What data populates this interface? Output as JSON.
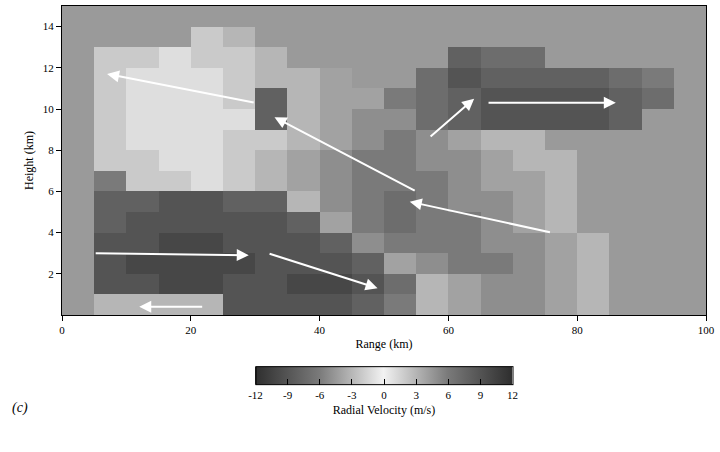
{
  "chart_data": {
    "type": "heatmap",
    "xlabel": "Range (km)",
    "ylabel": "Height (km)",
    "panel_label": "(c)",
    "xlim": [
      0,
      100
    ],
    "xticks": [
      0,
      20,
      40,
      60,
      80,
      100
    ],
    "ylim": [
      0,
      15
    ],
    "yticks": [
      2,
      4,
      6,
      8,
      10,
      12,
      14
    ],
    "x": [
      2.5,
      7.5,
      12.5,
      17.5,
      22.5,
      27.5,
      32.5,
      37.5,
      42.5,
      47.5,
      52.5,
      57.5,
      62.5,
      67.5,
      72.5,
      77.5,
      82.5,
      87.5,
      92.5,
      97.5
    ],
    "y": [
      0.5,
      1.5,
      2.5,
      3.5,
      4.5,
      5.5,
      6.5,
      7.5,
      8.5,
      9.5,
      10.5,
      11.5,
      12.5,
      13.5,
      14.5
    ],
    "z": [
      [
        null,
        -3,
        -3,
        -3,
        -3,
        9,
        9,
        9,
        9,
        8,
        6,
        -3,
        -4,
        -5,
        -5,
        -4,
        -3,
        null,
        null,
        null
      ],
      [
        null,
        9,
        9,
        10,
        10,
        9,
        9,
        10,
        10,
        9,
        7,
        -3,
        -4,
        -5,
        -5,
        -4,
        -3,
        null,
        null,
        null
      ],
      [
        null,
        9,
        10,
        10,
        10,
        10,
        9,
        9,
        9,
        8,
        -4,
        -5,
        -6,
        -6,
        -5,
        -4,
        -3,
        null,
        null,
        null
      ],
      [
        null,
        9,
        9,
        10,
        10,
        9,
        9,
        9,
        8,
        -5,
        -6,
        -6,
        -6,
        -5,
        -5,
        -4,
        -3,
        null,
        null,
        null
      ],
      [
        null,
        8,
        9,
        9,
        9,
        9,
        9,
        8,
        -4,
        -6,
        -7,
        -6,
        -6,
        -5,
        -4,
        -3,
        null,
        null,
        null,
        null
      ],
      [
        null,
        8,
        8,
        9,
        9,
        8,
        8,
        -3,
        -5,
        -6,
        -7,
        -6,
        -5,
        -5,
        -4,
        -3,
        null,
        null,
        null,
        null
      ],
      [
        null,
        6,
        -2,
        -2,
        -1,
        -2,
        -3,
        -4,
        -5,
        -6,
        -6,
        -6,
        -5,
        -4,
        -4,
        -3,
        null,
        null,
        null,
        null
      ],
      [
        null,
        -2,
        -2,
        -1,
        -1,
        -2,
        -3,
        -4,
        -5,
        -6,
        -6,
        -5,
        -5,
        -4,
        -3,
        -3,
        null,
        null,
        null,
        null
      ],
      [
        null,
        -2,
        -1,
        -1,
        -1,
        -2,
        -2,
        -3,
        -4,
        -5,
        -6,
        -5,
        -4,
        -3,
        -3,
        null,
        null,
        null,
        null,
        null
      ],
      [
        null,
        -2,
        -1,
        -1,
        -1,
        -1,
        -8,
        -3,
        -4,
        -5,
        -5,
        7,
        8,
        9,
        9,
        9,
        9,
        8,
        null,
        null
      ],
      [
        null,
        -2,
        -1,
        -1,
        -1,
        -2,
        -8,
        -3,
        -4,
        -4,
        6,
        7,
        8,
        9,
        9,
        9,
        9,
        8,
        7,
        null
      ],
      [
        null,
        -2,
        -1,
        -1,
        -1,
        -2,
        -3,
        -3,
        -4,
        null,
        null,
        7,
        9,
        8,
        8,
        8,
        8,
        7,
        6,
        null
      ],
      [
        null,
        -2,
        -2,
        -1,
        -2,
        -2,
        -3,
        null,
        null,
        null,
        null,
        null,
        8,
        7,
        7,
        null,
        null,
        null,
        null,
        null
      ],
      [
        null,
        null,
        null,
        null,
        -2,
        -3,
        null,
        null,
        null,
        null,
        null,
        null,
        null,
        null,
        null,
        null,
        null,
        null,
        null,
        null
      ],
      [
        null,
        null,
        null,
        null,
        null,
        null,
        null,
        null,
        null,
        null,
        null,
        null,
        null,
        null,
        null,
        null,
        null,
        null,
        null,
        null
      ]
    ],
    "colorbar": {
      "label": "Radial Velocity (m/s)",
      "range": [
        -12,
        12
      ],
      "ticks": [
        -12,
        -9,
        -6,
        -3,
        0,
        3,
        6,
        9,
        12
      ]
    }
  }
}
